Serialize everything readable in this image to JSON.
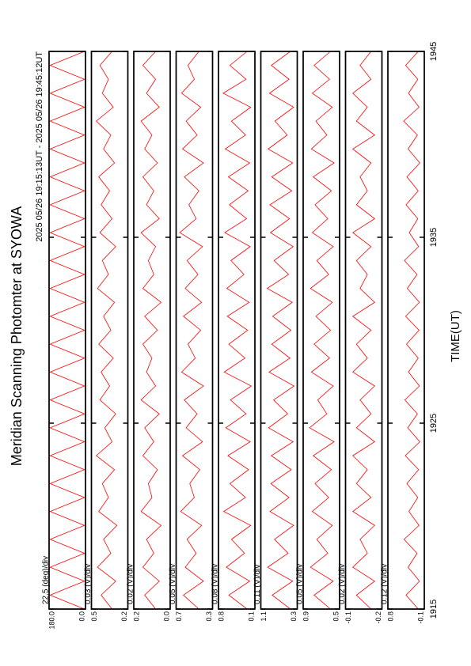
{
  "title": "Meridian Scanning Photomter at SYOWA",
  "subtitle": "2025 05/26 19:15:13UT - 2025 05/26 19:45:12UT",
  "time_axis": {
    "x_label": "TIME(UT)",
    "xlim": [
      1915,
      1945
    ],
    "xticks": [
      1915,
      1925,
      1935,
      1945
    ],
    "x": [
      1915,
      1915.75,
      1916.5,
      1917.25,
      1918,
      1918.75,
      1919.5,
      1920.25,
      1921,
      1921.75,
      1922.5,
      1923.25,
      1924,
      1924.75,
      1925.5,
      1926.25,
      1927,
      1927.75,
      1928.5,
      1929.25,
      1930,
      1930.75,
      1931.5,
      1932.25,
      1933,
      1933.75,
      1934.5,
      1935.25,
      1936,
      1936.75,
      1937.5,
      1938.25,
      1939,
      1939.75,
      1940.5,
      1941.25,
      1942,
      1942.75,
      1943.5,
      1944.25,
      1945
    ]
  },
  "chart_data": [
    {
      "type": "line",
      "annotation": "22.5 (deg)/div",
      "color": "#ff0000",
      "ylim": [
        0,
        180
      ],
      "yticks": [
        {
          "value": 0,
          "label": "0.0"
        },
        {
          "value": 180,
          "label": "180.0"
        }
      ],
      "values": [
        5,
        175,
        5,
        175,
        5,
        175,
        5,
        175,
        5,
        175,
        5,
        175,
        5,
        175,
        5,
        175,
        5,
        175,
        5,
        175,
        5,
        175,
        5,
        175,
        5,
        175,
        5,
        175,
        5,
        175,
        5,
        175,
        5,
        175,
        5,
        175,
        5,
        175,
        5,
        175,
        5
      ]
    },
    {
      "type": "line",
      "annotation": "0.03 (V)/div",
      "color": "#ff0000",
      "ylim": [
        0.2,
        0.5
      ],
      "yticks": [
        0.2,
        0.5
      ],
      "values": [
        0.33,
        0.42,
        0.3,
        0.45,
        0.34,
        0.4,
        0.29,
        0.44,
        0.36,
        0.41,
        0.31,
        0.46,
        0.33,
        0.39,
        0.3,
        0.43,
        0.35,
        0.42,
        0.32,
        0.44,
        0.34,
        0.4,
        0.31,
        0.45,
        0.36,
        0.41,
        0.3,
        0.43,
        0.33,
        0.42,
        0.35,
        0.44,
        0.31,
        0.4,
        0.34,
        0.46,
        0.32,
        0.41,
        0.36,
        0.43,
        0.33
      ]
    },
    {
      "type": "line",
      "annotation": "0.02 (V)/div",
      "color": "#ff0000",
      "ylim": [
        0,
        0.2
      ],
      "yticks": [
        {
          "value": 0,
          "label": "0.0"
        },
        0.2
      ],
      "values": [
        0.08,
        0.14,
        0.06,
        0.15,
        0.09,
        0.13,
        0.05,
        0.16,
        0.1,
        0.12,
        0.07,
        0.15,
        0.09,
        0.14,
        0.06,
        0.16,
        0.08,
        0.13,
        0.1,
        0.15,
        0.07,
        0.14,
        0.05,
        0.15,
        0.09,
        0.12,
        0.08,
        0.16,
        0.06,
        0.13,
        0.09,
        0.15,
        0.07,
        0.14,
        0.1,
        0.16,
        0.06,
        0.13,
        0.08,
        0.15,
        0.08
      ]
    },
    {
      "type": "line",
      "annotation": "0.05 (V)/div",
      "color": "#ff0000",
      "ylim": [
        0.3,
        0.7
      ],
      "yticks": [
        0.3,
        0.7
      ],
      "values": [
        0.45,
        0.62,
        0.4,
        0.6,
        0.48,
        0.58,
        0.42,
        0.65,
        0.5,
        0.55,
        0.44,
        0.63,
        0.41,
        0.59,
        0.47,
        0.61,
        0.4,
        0.64,
        0.49,
        0.57,
        0.43,
        0.62,
        0.42,
        0.6,
        0.46,
        0.58,
        0.41,
        0.66,
        0.48,
        0.56,
        0.45,
        0.61,
        0.4,
        0.63,
        0.47,
        0.59,
        0.43,
        0.64,
        0.5,
        0.57,
        0.45
      ]
    },
    {
      "type": "line",
      "annotation": "0.08 (V)/div",
      "color": "#ff0000",
      "ylim": [
        0.1,
        0.8
      ],
      "yticks": [
        0.1,
        0.8
      ],
      "values": [
        0.25,
        0.6,
        0.2,
        0.65,
        0.3,
        0.55,
        0.18,
        0.7,
        0.28,
        0.58,
        0.22,
        0.62,
        0.19,
        0.66,
        0.27,
        0.57,
        0.17,
        0.69,
        0.29,
        0.6,
        0.24,
        0.63,
        0.21,
        0.64,
        0.31,
        0.56,
        0.19,
        0.68,
        0.26,
        0.59,
        0.23,
        0.61,
        0.2,
        0.67,
        0.28,
        0.55,
        0.18,
        0.71,
        0.27,
        0.58,
        0.25
      ]
    },
    {
      "type": "line",
      "annotation": "0.11 (V)/div",
      "color": "#ff0000",
      "ylim": [
        0.3,
        1.1
      ],
      "yticks": [
        0.3,
        1.1
      ],
      "values": [
        0.45,
        0.85,
        0.4,
        0.95,
        0.5,
        0.8,
        0.38,
        0.9,
        0.48,
        0.88,
        0.43,
        0.87,
        0.39,
        0.93,
        0.51,
        0.82,
        0.37,
        0.92,
        0.46,
        0.86,
        0.44,
        0.84,
        0.41,
        0.96,
        0.49,
        0.81,
        0.39,
        0.89,
        0.47,
        0.9,
        0.42,
        0.86,
        0.4,
        0.94,
        0.52,
        0.79,
        0.38,
        0.91,
        0.48,
        0.87,
        0.45
      ]
    },
    {
      "type": "line",
      "annotation": "0.05 (V)/div",
      "color": "#ff0000",
      "ylim": [
        0.5,
        0.9
      ],
      "yticks": [
        0.5,
        0.9
      ],
      "values": [
        0.6,
        0.78,
        0.57,
        0.82,
        0.63,
        0.75,
        0.58,
        0.8,
        0.62,
        0.77,
        0.59,
        0.79,
        0.56,
        0.83,
        0.64,
        0.74,
        0.57,
        0.81,
        0.61,
        0.78,
        0.6,
        0.76,
        0.58,
        0.82,
        0.62,
        0.75,
        0.57,
        0.8,
        0.63,
        0.77,
        0.59,
        0.79,
        0.56,
        0.81,
        0.64,
        0.76,
        0.58,
        0.8,
        0.61,
        0.78,
        0.6
      ]
    },
    {
      "type": "line",
      "annotation": "0.02 (V)/div",
      "color": "#ff0000",
      "ylim": [
        -0.2,
        -0.1
      ],
      "yticks": [
        -0.2,
        -0.1
      ],
      "values": [
        -0.17,
        -0.13,
        -0.18,
        -0.12,
        -0.16,
        -0.14,
        -0.18,
        -0.12,
        -0.17,
        -0.13,
        -0.16,
        -0.12,
        -0.18,
        -0.13,
        -0.17,
        -0.14,
        -0.18,
        -0.12,
        -0.16,
        -0.13,
        -0.17,
        -0.12,
        -0.18,
        -0.14,
        -0.16,
        -0.13,
        -0.17,
        -0.12,
        -0.18,
        -0.13,
        -0.16,
        -0.14,
        -0.17,
        -0.12,
        -0.18,
        -0.13,
        -0.16,
        -0.12,
        -0.17,
        -0.14,
        -0.17
      ]
    },
    {
      "type": "line",
      "annotation": "0.12 (V)/div",
      "color": "#ff0000",
      "ylim": [
        -0.1,
        0.8
      ],
      "yticks": [
        -0.1,
        0.8
      ],
      "values": [
        0.05,
        0.35,
        0.02,
        0.3,
        0.08,
        0.4,
        0.03,
        0.28,
        0.06,
        0.33,
        0.04,
        0.37,
        0.01,
        0.31,
        0.07,
        0.38,
        0.02,
        0.29,
        0.05,
        0.34,
        0.03,
        0.36,
        0.02,
        0.32,
        0.08,
        0.39,
        0.04,
        0.27,
        0.06,
        0.35,
        0.05,
        0.33,
        0.01,
        0.3,
        0.07,
        0.41,
        0.03,
        0.29,
        0.06,
        0.36,
        0.05
      ]
    }
  ]
}
